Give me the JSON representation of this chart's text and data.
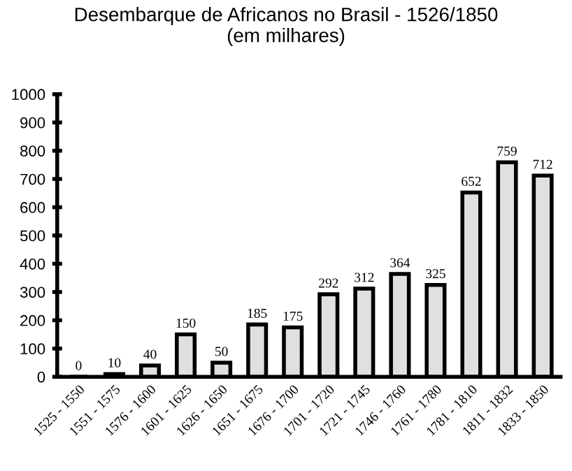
{
  "chart_data": {
    "type": "bar",
    "title": "Desembarque de Africanos no Brasil - 1526/1850\n(em milhares)",
    "categories": [
      "1525 - 1550",
      "1551 - 1575",
      "1576 - 1600",
      "1601 - 1625",
      "1626 - 1650",
      "1651 - 1675",
      "1676 - 1700",
      "1701 - 1720",
      "1721 - 1745",
      "1746 - 1760",
      "1761 - 1780",
      "1781 - 1810",
      "1811 - 1832",
      "1833 - 1850"
    ],
    "values": [
      0,
      10,
      40,
      150,
      50,
      185,
      175,
      292,
      312,
      364,
      325,
      652,
      759,
      712
    ],
    "color": "#e0e0e0",
    "ylim": [
      0,
      1000
    ],
    "yticks": [
      0,
      100,
      200,
      300,
      400,
      500,
      600,
      700,
      800,
      900,
      1000
    ],
    "data_labels": true,
    "grid": false,
    "legend": false
  }
}
